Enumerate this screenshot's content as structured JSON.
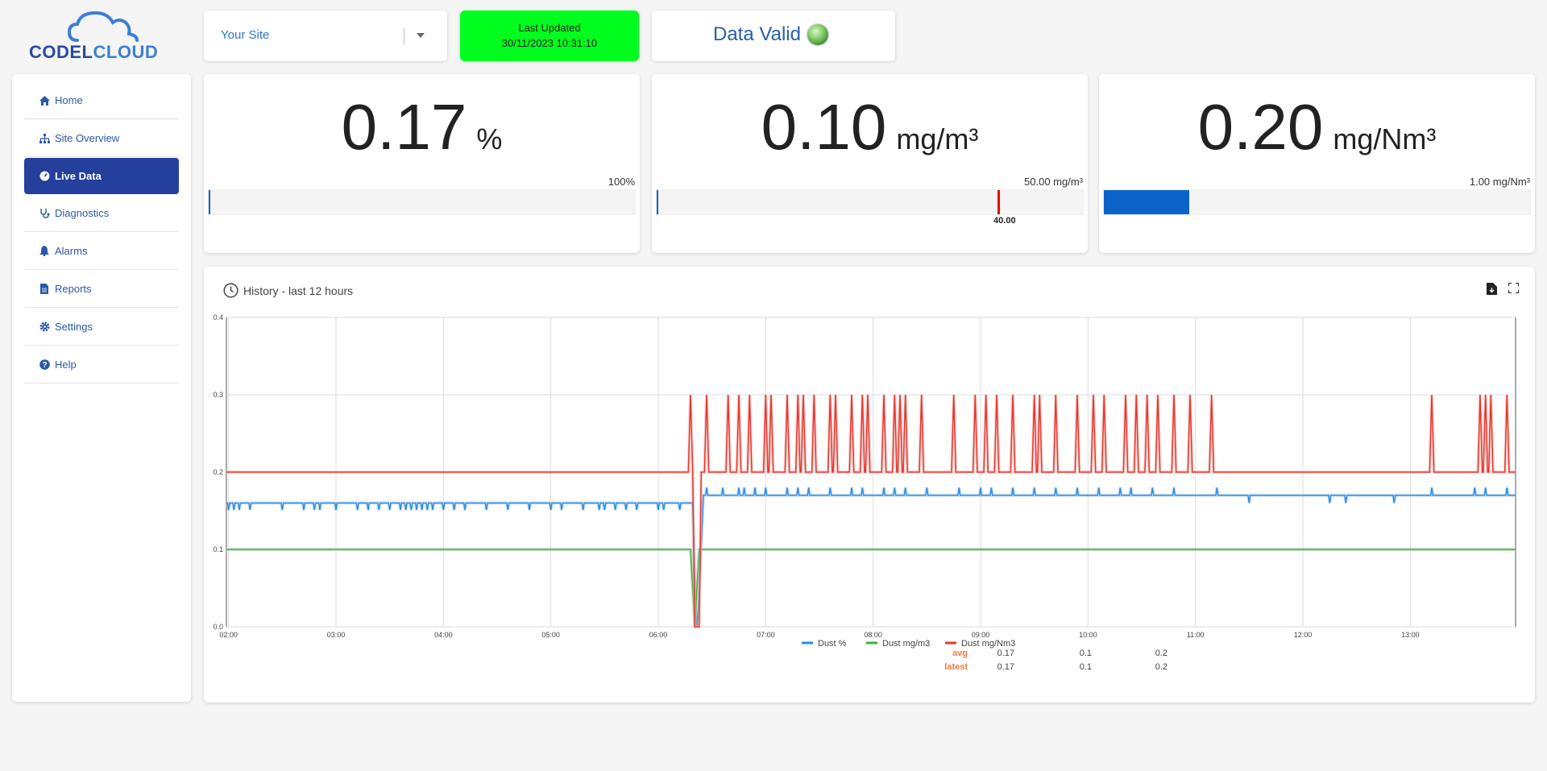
{
  "logo": {
    "text_a": "CODEL",
    "text_b": "CLOUD"
  },
  "sidebar": {
    "items": [
      {
        "label": "Home",
        "icon": "home-icon"
      },
      {
        "label": "Site Overview",
        "icon": "sitemap-icon"
      },
      {
        "label": "Live Data",
        "icon": "gauge-icon",
        "active": true
      },
      {
        "label": "Diagnostics",
        "icon": "stethoscope-icon"
      },
      {
        "label": "Alarms",
        "icon": "bell-icon"
      },
      {
        "label": "Reports",
        "icon": "file-icon"
      },
      {
        "label": "Settings",
        "icon": "gear-icon"
      },
      {
        "label": "Help",
        "icon": "question-icon"
      }
    ]
  },
  "site_select": {
    "value": "Your Site"
  },
  "last_updated": {
    "label": "Last Updated",
    "timestamp": "30/11/2023 10:31:10",
    "color": "#00ff1e"
  },
  "data_valid": {
    "label": "Data Valid",
    "status_color": "#6cc04a"
  },
  "metrics": [
    {
      "value": "0.17",
      "unit": "%",
      "max_label": "100%",
      "fraction": 0.0017
    },
    {
      "value": "0.10",
      "unit": "mg/m³",
      "max_label": "50.00 mg/m³",
      "fraction": 0.002,
      "threshold_label": "40.00",
      "threshold_fraction": 0.8
    },
    {
      "value": "0.20",
      "unit": "mg/Nm³",
      "max_label": "1.00 mg/Nm³",
      "fraction": 0.2
    }
  ],
  "history": {
    "title": "History - last 12 hours",
    "legend": {
      "series": [
        "Dust %",
        "Dust mg/m3",
        "Dust mg/Nm3"
      ],
      "colors": [
        "#2b8ee6",
        "#3cae3c",
        "#e8372f"
      ],
      "rows": [
        {
          "label": "avg",
          "values": [
            "0.17",
            "0.1",
            "0.2"
          ]
        },
        {
          "label": "latest",
          "values": [
            "0.17",
            "0.1",
            "0.2"
          ]
        }
      ]
    }
  },
  "chart_data": {
    "type": "line",
    "x_ticks": [
      "02:00",
      "03:00",
      "04:00",
      "05:00",
      "06:00",
      "07:00",
      "08:00",
      "09:00",
      "10:00",
      "11:00",
      "12:00",
      "13:00"
    ],
    "y_ticks": [
      "0.0",
      "0.1",
      "0.2",
      "0.3",
      "0.4"
    ],
    "ylim": [
      0,
      0.4
    ],
    "x_range_hours": [
      1.98,
      13.98
    ],
    "grid": true,
    "legend_placement": "bottom",
    "series": [
      {
        "name": "Dust %",
        "color": "#2b8ee6",
        "baseline": [
          [
            1.98,
            0.16
          ],
          [
            6.32,
            0.16
          ],
          [
            6.36,
            0.0
          ],
          [
            6.4,
            0.17
          ],
          [
            13.98,
            0.17
          ]
        ],
        "dips_before": [
          2.0,
          2.05,
          2.1,
          2.2,
          2.5,
          2.7,
          2.8,
          2.85,
          3.0,
          3.2,
          3.3,
          3.4,
          3.5,
          3.6,
          3.65,
          3.7,
          3.75,
          3.8,
          3.85,
          3.9,
          4.0,
          4.1,
          4.2,
          4.4,
          4.6,
          4.8,
          5.0,
          5.1,
          5.3,
          5.45,
          5.5,
          5.6,
          5.7,
          5.8,
          6.0,
          6.05,
          6.2
        ],
        "dips_after": [
          11.5,
          12.25,
          12.4,
          12.85
        ],
        "spikes_after": [
          6.45,
          6.6,
          6.75,
          6.8,
          6.9,
          7.0,
          7.2,
          7.3,
          7.4,
          7.6,
          7.8,
          7.9,
          8.1,
          8.2,
          8.3,
          8.5,
          8.8,
          9.0,
          9.1,
          9.3,
          9.5,
          9.7,
          9.9,
          10.1,
          10.3,
          10.4,
          10.6,
          10.8,
          11.2,
          13.2,
          13.6,
          13.7,
          13.9
        ]
      },
      {
        "name": "Dust mg/m3",
        "color": "#3cae3c",
        "points": [
          [
            1.98,
            0.1
          ],
          [
            6.3,
            0.1
          ],
          [
            6.34,
            0.0
          ],
          [
            6.38,
            0.1
          ],
          [
            13.98,
            0.1
          ]
        ]
      },
      {
        "name": "Dust mg/Nm3",
        "color": "#e8372f",
        "baseline": [
          [
            1.98,
            0.2
          ],
          [
            6.3,
            0.2
          ],
          [
            6.36,
            0.0
          ],
          [
            6.4,
            0.2
          ],
          [
            13.98,
            0.2
          ]
        ],
        "spikes": [
          6.3,
          6.45,
          6.65,
          6.75,
          6.85,
          7.0,
          7.05,
          7.2,
          7.3,
          7.35,
          7.45,
          7.6,
          7.65,
          7.8,
          7.9,
          7.95,
          8.1,
          8.2,
          8.25,
          8.3,
          8.45,
          8.75,
          8.95,
          9.05,
          9.15,
          9.3,
          9.5,
          9.55,
          9.7,
          9.9,
          10.05,
          10.15,
          10.35,
          10.45,
          10.55,
          10.65,
          10.8,
          10.95,
          11.15,
          13.2,
          13.65,
          13.7,
          13.75,
          13.9
        ]
      }
    ]
  }
}
